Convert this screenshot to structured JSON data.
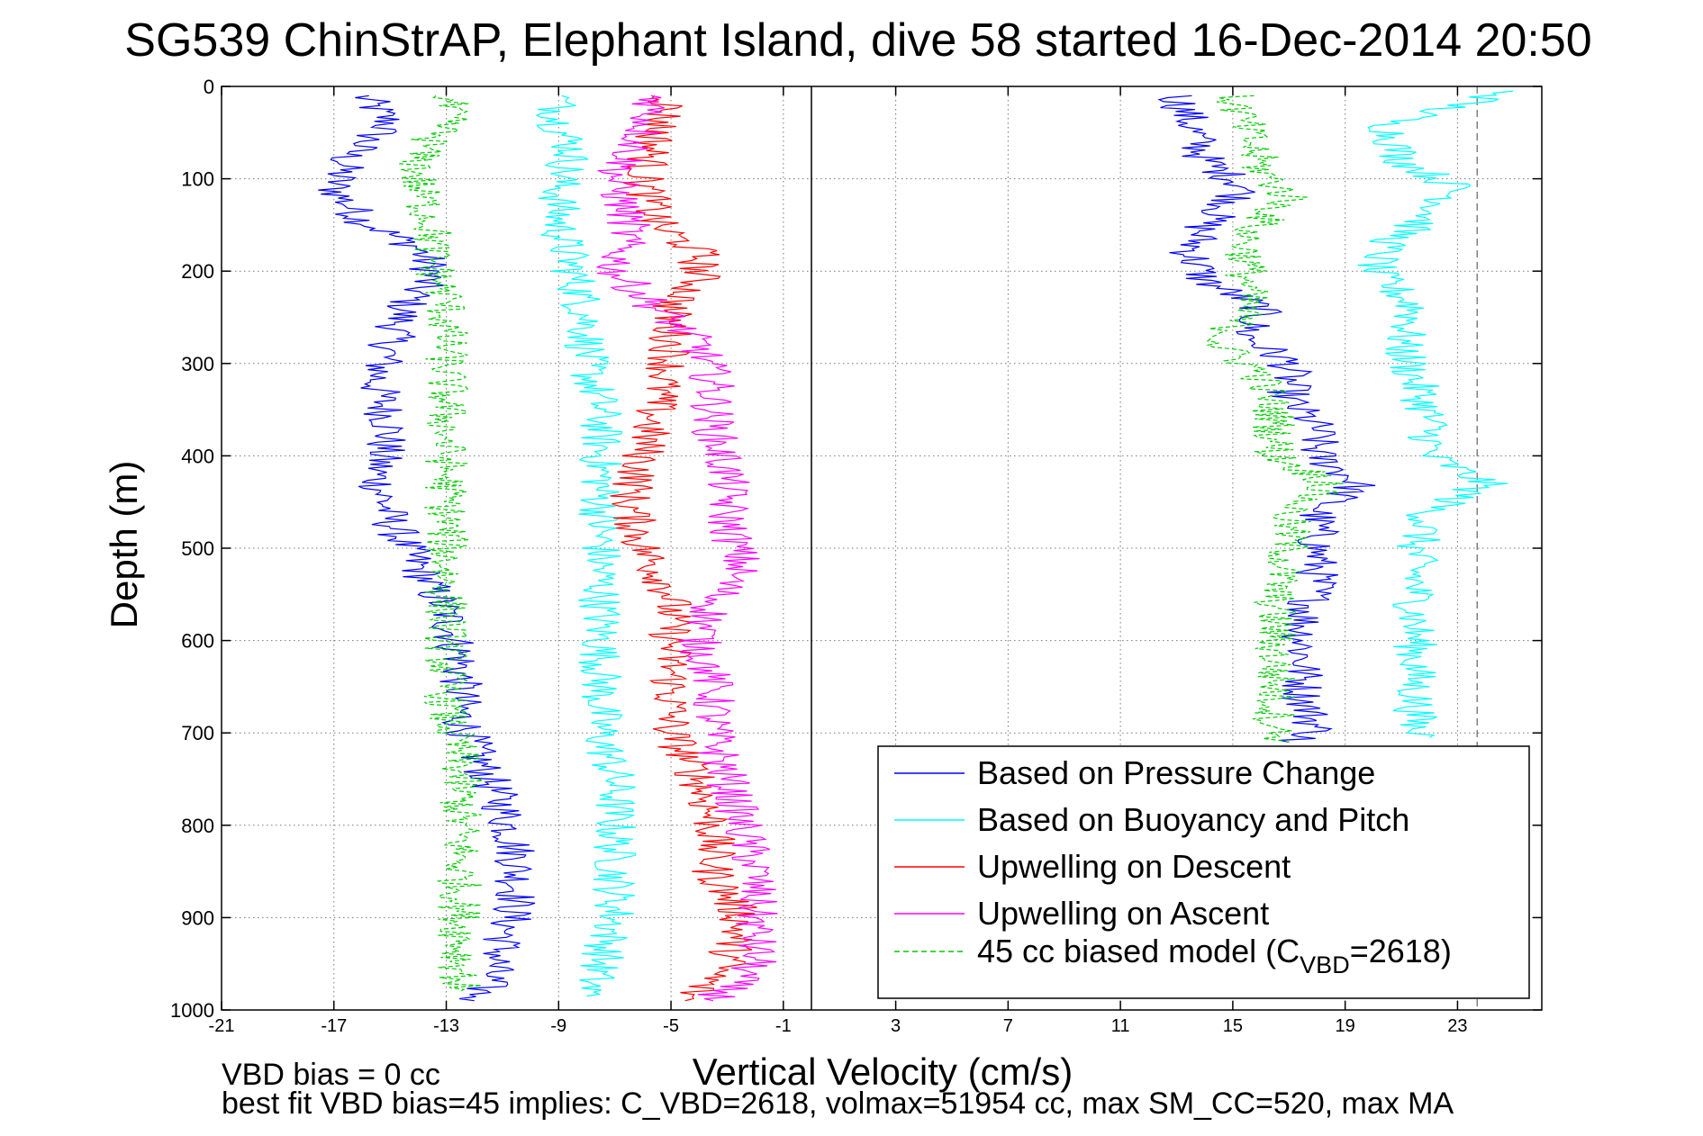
{
  "figure": {
    "title": "SG539 ChinStrAP, Elephant Island, dive 58 started 16-Dec-2014 20:50",
    "footer": {
      "line1": "VBD bias = 0 cc",
      "line2": "best fit VBD bias=45 implies: C_VBD=2618, volmax=51954 cc, max SM_CC=520, max MA"
    }
  },
  "chart_data": {
    "type": "line",
    "title": "SG539 ChinStrAP, Elephant Island, dive 58 started 16-Dec-2014 20:50",
    "xlabel": "Vertical Velocity (cm/s)",
    "ylabel": "Depth (m)",
    "xlim": [
      -21,
      26
    ],
    "ylim": [
      1000,
      0
    ],
    "y_reversed": true,
    "grid": true,
    "xticks": [
      "-21",
      "-17",
      "-13",
      "-9",
      "-5",
      "-1",
      "3",
      "7",
      "11",
      "15",
      "19",
      "23"
    ],
    "yticks": [
      "0",
      "100",
      "200",
      "300",
      "400",
      "500",
      "600",
      "700",
      "800",
      "900",
      "1000"
    ],
    "xtick_values": [
      -21,
      -17,
      -13,
      -9,
      -5,
      -1,
      3,
      7,
      11,
      15,
      19,
      23
    ],
    "ytick_values": [
      0,
      100,
      200,
      300,
      400,
      500,
      600,
      700,
      800,
      900,
      1000
    ],
    "legend_position": "bottom-right",
    "reference_lines": [
      {
        "axis": "x",
        "value": 0,
        "color": "#000000",
        "style": "solid"
      },
      {
        "axis": "x",
        "value": 23.7,
        "color": "#808080",
        "style": "dashed"
      }
    ],
    "legend": [
      {
        "label": "Based on Pressure Change",
        "color": "#0000ff",
        "style": "solid"
      },
      {
        "label": "Based on Buoyancy and Pitch",
        "color": "#00ffff",
        "style": "solid"
      },
      {
        "label": "Upwelling on Descent",
        "color": "#ff0000",
        "style": "solid"
      },
      {
        "label": "Upwelling on Ascent",
        "color": "#ff00ff",
        "style": "solid"
      },
      {
        "label": "45 cc biased model (C",
        "label_sub": "VBD",
        "label_tail": "=2618)",
        "color": "#00cc00",
        "style": "dashed"
      }
    ],
    "series": [
      {
        "name": "Based on Pressure Change",
        "color": "#0000ff",
        "dash": false,
        "points": [
          [
            -16,
            10
          ],
          [
            -15,
            40
          ],
          [
            -16.5,
            75
          ],
          [
            -17,
            110
          ],
          [
            -16,
            145
          ],
          [
            -14,
            175
          ],
          [
            -13.5,
            200
          ],
          [
            -14.5,
            240
          ],
          [
            -15,
            280
          ],
          [
            -15.5,
            320
          ],
          [
            -15,
            370
          ],
          [
            -15.5,
            420
          ],
          [
            -15,
            470
          ],
          [
            -14,
            520
          ],
          [
            -13,
            570
          ],
          [
            -12.5,
            620
          ],
          [
            -12.5,
            680
          ],
          [
            -12,
            720
          ],
          [
            -11,
            780
          ],
          [
            -10.5,
            830
          ],
          [
            -10.5,
            880
          ],
          [
            -11,
            930
          ],
          [
            -11.5,
            970
          ],
          [
            -12,
            990
          ],
          [
            13,
            10
          ],
          [
            13.5,
            40
          ],
          [
            14,
            80
          ],
          [
            15.5,
            110
          ],
          [
            14,
            150
          ],
          [
            13.5,
            180
          ],
          [
            14,
            210
          ],
          [
            16,
            240
          ],
          [
            15.5,
            270
          ],
          [
            17,
            300
          ],
          [
            17,
            340
          ],
          [
            18,
            370
          ],
          [
            18,
            400
          ],
          [
            19.5,
            430
          ],
          [
            18,
            460
          ],
          [
            18,
            500
          ],
          [
            18,
            540
          ],
          [
            17.5,
            580
          ],
          [
            17.5,
            620
          ],
          [
            17.5,
            660
          ],
          [
            18,
            700
          ],
          [
            17,
            710
          ]
        ]
      },
      {
        "name": "Based on Buoyancy and Pitch",
        "color": "#00ffff",
        "dash": false,
        "points": [
          [
            -9,
            10
          ],
          [
            -9,
            40
          ],
          [
            -8.5,
            70
          ],
          [
            -9,
            110
          ],
          [
            -9,
            150
          ],
          [
            -8.5,
            200
          ],
          [
            -8,
            250
          ],
          [
            -8,
            300
          ],
          [
            -7.5,
            350
          ],
          [
            -7.5,
            400
          ],
          [
            -7.5,
            450
          ],
          [
            -7.5,
            500
          ],
          [
            -7.5,
            550
          ],
          [
            -7.5,
            600
          ],
          [
            -7.5,
            650
          ],
          [
            -7.5,
            700
          ],
          [
            -7,
            750
          ],
          [
            -7,
            800
          ],
          [
            -7,
            850
          ],
          [
            -7,
            900
          ],
          [
            -7.5,
            950
          ],
          [
            -8,
            985
          ],
          [
            25,
            5
          ],
          [
            20.5,
            40
          ],
          [
            21,
            80
          ],
          [
            23,
            110
          ],
          [
            22,
            140
          ],
          [
            20.5,
            170
          ],
          [
            20,
            200
          ],
          [
            21.5,
            240
          ],
          [
            21,
            280
          ],
          [
            21.5,
            320
          ],
          [
            22,
            360
          ],
          [
            22,
            400
          ],
          [
            24,
            430
          ],
          [
            22,
            460
          ],
          [
            21.5,
            500
          ],
          [
            21.5,
            550
          ],
          [
            21.5,
            600
          ],
          [
            21.5,
            650
          ],
          [
            21.5,
            700
          ],
          [
            22,
            705
          ]
        ]
      },
      {
        "name": "Upwelling on Descent",
        "color": "#ff0000",
        "dash": false,
        "points": [
          [
            -5,
            10
          ],
          [
            -5.5,
            50
          ],
          [
            -6,
            100
          ],
          [
            -5.5,
            150
          ],
          [
            -4,
            180
          ],
          [
            -4,
            210
          ],
          [
            -5,
            240
          ],
          [
            -5,
            290
          ],
          [
            -5.5,
            340
          ],
          [
            -6,
            400
          ],
          [
            -6.5,
            450
          ],
          [
            -6,
            500
          ],
          [
            -5,
            550
          ],
          [
            -5,
            600
          ],
          [
            -5,
            650
          ],
          [
            -5,
            700
          ],
          [
            -4,
            750
          ],
          [
            -3.5,
            800
          ],
          [
            -3.5,
            850
          ],
          [
            -2.5,
            900
          ],
          [
            -3,
            950
          ],
          [
            -4.5,
            990
          ]
        ]
      },
      {
        "name": "Upwelling on Ascent",
        "color": "#ff00ff",
        "dash": false,
        "points": [
          [
            -5.5,
            10
          ],
          [
            -6,
            50
          ],
          [
            -7,
            100
          ],
          [
            -6.5,
            150
          ],
          [
            -7,
            200
          ],
          [
            -5.5,
            240
          ],
          [
            -4,
            280
          ],
          [
            -3.5,
            320
          ],
          [
            -3.5,
            370
          ],
          [
            -3,
            420
          ],
          [
            -3,
            470
          ],
          [
            -2.5,
            520
          ],
          [
            -3.5,
            560
          ],
          [
            -4,
            600
          ],
          [
            -3.5,
            650
          ],
          [
            -3.5,
            700
          ],
          [
            -3,
            750
          ],
          [
            -2.5,
            800
          ],
          [
            -2,
            850
          ],
          [
            -2,
            900
          ],
          [
            -2,
            950
          ],
          [
            -3.5,
            990
          ]
        ]
      },
      {
        "name": "45 cc biased model (C_VBD=2618)",
        "color": "#00cc00",
        "dash": true,
        "points": [
          [
            -13,
            10
          ],
          [
            -13,
            40
          ],
          [
            -14,
            75
          ],
          [
            -14,
            110
          ],
          [
            -13.5,
            150
          ],
          [
            -13.5,
            190
          ],
          [
            -13,
            230
          ],
          [
            -13,
            280
          ],
          [
            -13,
            330
          ],
          [
            -13,
            380
          ],
          [
            -13,
            430
          ],
          [
            -13,
            480
          ],
          [
            -13,
            530
          ],
          [
            -13,
            580
          ],
          [
            -13,
            630
          ],
          [
            -13,
            680
          ],
          [
            -12.5,
            730
          ],
          [
            -12.5,
            780
          ],
          [
            -12.5,
            830
          ],
          [
            -12.5,
            880
          ],
          [
            -12.5,
            930
          ],
          [
            -12.5,
            980
          ],
          [
            15,
            10
          ],
          [
            15.5,
            50
          ],
          [
            16,
            90
          ],
          [
            17,
            120
          ],
          [
            15.5,
            160
          ],
          [
            15.5,
            200
          ],
          [
            15.5,
            240
          ],
          [
            14.5,
            280
          ],
          [
            16,
            310
          ],
          [
            16.5,
            360
          ],
          [
            16.5,
            400
          ],
          [
            18.5,
            430
          ],
          [
            17,
            460
          ],
          [
            17,
            500
          ],
          [
            16.5,
            550
          ],
          [
            16.5,
            600
          ],
          [
            16.5,
            650
          ],
          [
            16.5,
            700
          ],
          [
            17,
            710
          ]
        ]
      }
    ]
  }
}
